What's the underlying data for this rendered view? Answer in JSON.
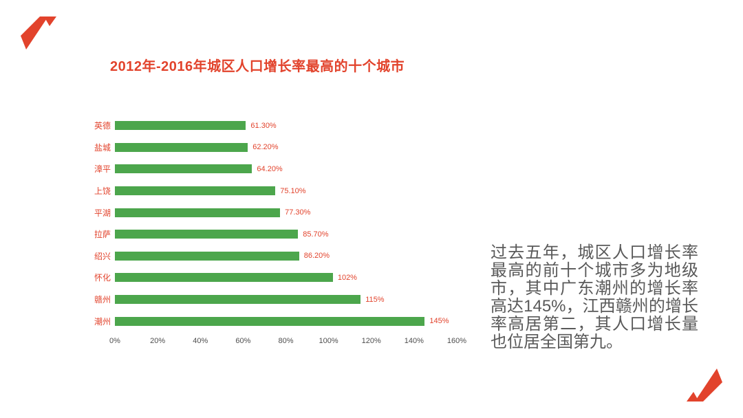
{
  "colors": {
    "accent_red": "#e2432c",
    "bar_green": "#4ca64c",
    "text_gray": "#595959"
  },
  "chart_data": {
    "type": "bar",
    "orientation": "horizontal",
    "title": "2012年-2016年城区人口增长率最高的十个城市",
    "categories": [
      "英德",
      "盐城",
      "漳平",
      "上饶",
      "平湖",
      "拉萨",
      "绍兴",
      "怀化",
      "赣州",
      "潮州"
    ],
    "values": [
      61.3,
      62.2,
      64.2,
      75.1,
      77.3,
      85.7,
      86.2,
      102,
      115,
      145
    ],
    "value_labels": [
      "61.30%",
      "62.20%",
      "64.20%",
      "75.10%",
      "77.30%",
      "85.70%",
      "86.20%",
      "102%",
      "115%",
      "145%"
    ],
    "xlim": [
      0,
      160
    ],
    "x_ticks": [
      "0%",
      "20%",
      "40%",
      "60%",
      "80%",
      "100%",
      "120%",
      "140%",
      "160%"
    ],
    "grid": "off",
    "legend": "none",
    "xlabel": "",
    "ylabel": ""
  },
  "annotation": {
    "text": "过去五年，城区人口增长率最高的前十个城市多为地级市，其中广东潮州的增长率高达145%，江西赣州的增长率高居第二，其人口增长量也位居全国第九。"
  }
}
